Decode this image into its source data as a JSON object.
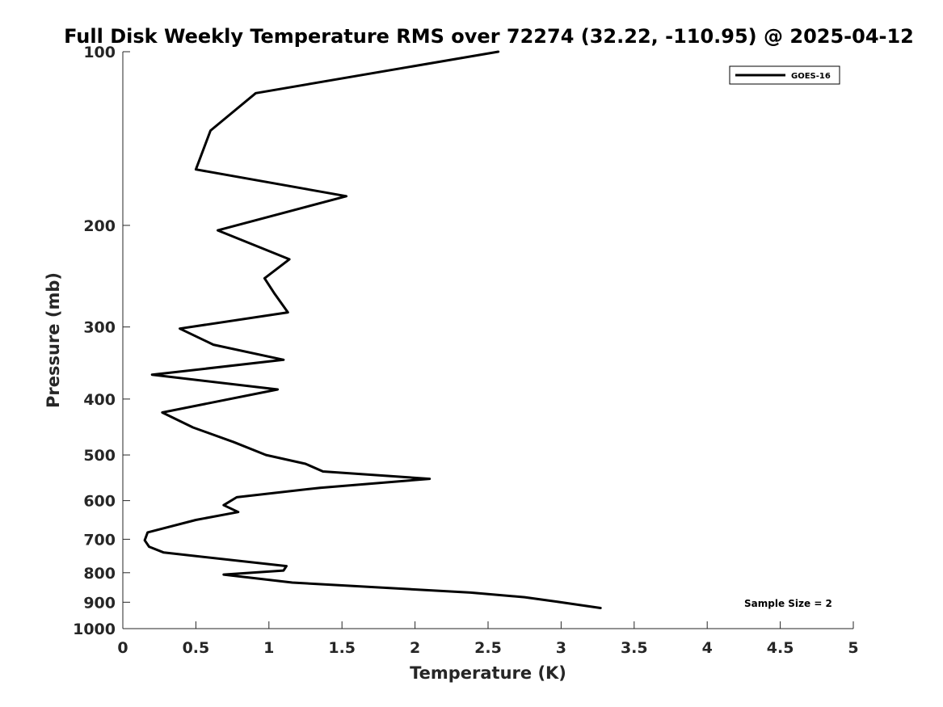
{
  "chart_data": {
    "type": "line",
    "title": "Full Disk Weekly Temperature RMS over 72274 (32.22, -110.95) @ 2025-04-12",
    "xlabel": "Temperature (K)",
    "ylabel": "Pressure (mb)",
    "xlim": [
      0,
      5
    ],
    "ylim": [
      1000,
      100
    ],
    "yscale": "log",
    "x_ticks": [
      0,
      0.5,
      1,
      1.5,
      2,
      2.5,
      3,
      3.5,
      4,
      4.5,
      5
    ],
    "x_tick_labels": [
      "0",
      "0.5",
      "1",
      "1.5",
      "2",
      "2.5",
      "3",
      "3.5",
      "4",
      "4.5",
      "5"
    ],
    "y_ticks": [
      100,
      200,
      300,
      400,
      500,
      600,
      700,
      800,
      900,
      1000
    ],
    "y_tick_labels": [
      "100",
      "200",
      "300",
      "400",
      "500",
      "600",
      "700",
      "800",
      "900",
      "1000"
    ],
    "grid": false,
    "legend_position": "top-right",
    "series": [
      {
        "name": "GOES-16",
        "color": "#000000",
        "points": [
          [
            2.57,
            100
          ],
          [
            0.91,
            118
          ],
          [
            0.6,
            137
          ],
          [
            0.5,
            160
          ],
          [
            1.53,
            178
          ],
          [
            0.65,
            204
          ],
          [
            1.14,
            229
          ],
          [
            0.97,
            247
          ],
          [
            1.04,
            263
          ],
          [
            1.13,
            283
          ],
          [
            0.39,
            302
          ],
          [
            0.62,
            322
          ],
          [
            1.1,
            342
          ],
          [
            0.2,
            363
          ],
          [
            1.06,
            385
          ],
          [
            0.27,
            422
          ],
          [
            0.48,
            448
          ],
          [
            0.76,
            475
          ],
          [
            0.98,
            500
          ],
          [
            1.25,
            518
          ],
          [
            1.37,
            534
          ],
          [
            2.1,
            550
          ],
          [
            1.35,
            570
          ],
          [
            0.78,
            592
          ],
          [
            0.69,
            611
          ],
          [
            0.79,
            628
          ],
          [
            0.5,
            648
          ],
          [
            0.17,
            681
          ],
          [
            0.15,
            703
          ],
          [
            0.18,
            721
          ],
          [
            0.28,
            738
          ],
          [
            1.12,
            779
          ],
          [
            1.1,
            793
          ],
          [
            0.69,
            806
          ],
          [
            1.16,
            832
          ],
          [
            2.38,
            866
          ],
          [
            2.75,
            882
          ],
          [
            2.97,
            898
          ],
          [
            3.27,
            921
          ]
        ]
      }
    ],
    "annotation": "Sample Size = 2"
  }
}
